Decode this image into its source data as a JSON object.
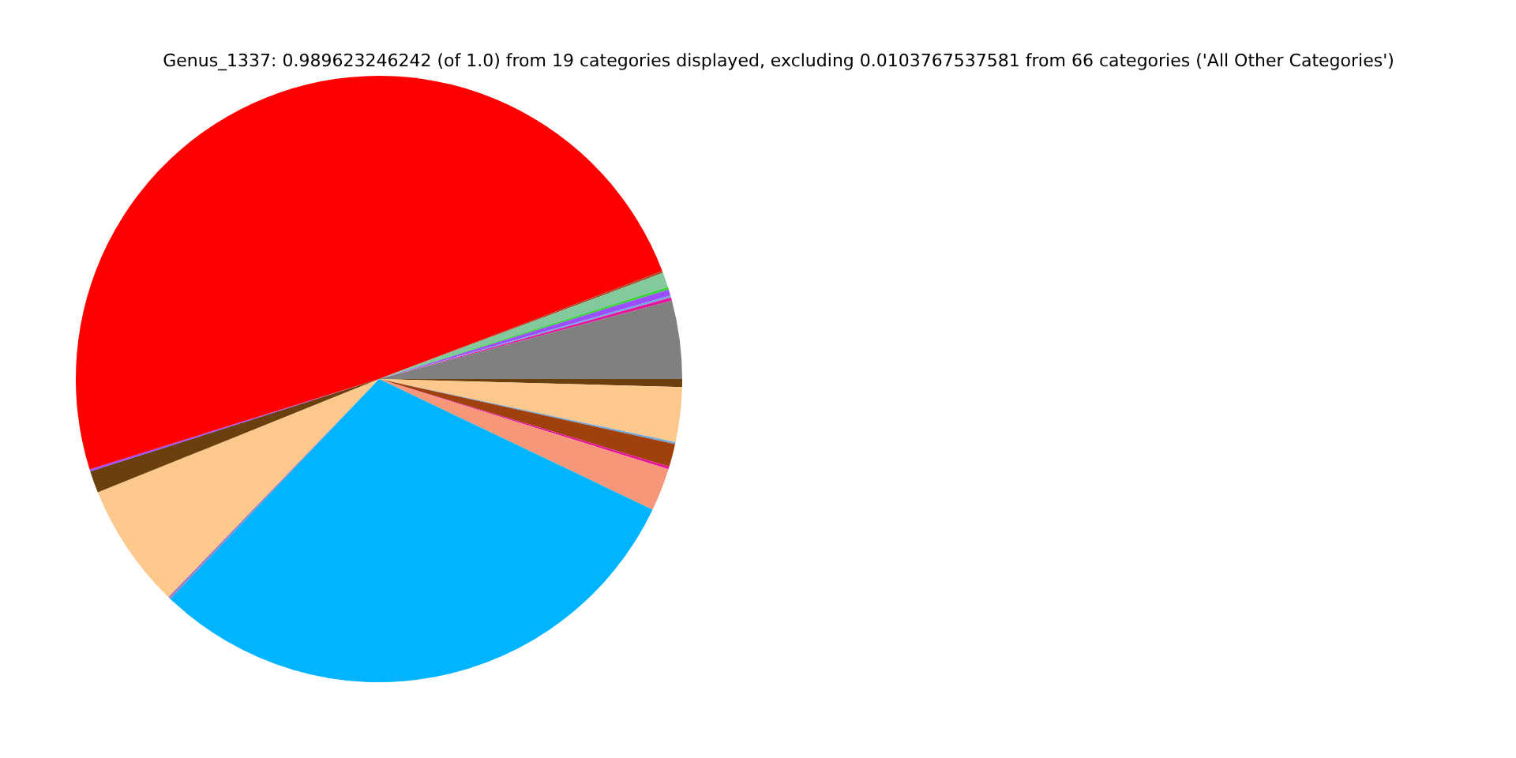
{
  "chart_data": {
    "type": "pie",
    "title": "Genus_1337: 0.989623246242 (of 1.0) from 19 categories displayed, excluding 0.0103767537581 from 66 categories ('All Other Categories')",
    "categories": [
      null,
      null,
      null,
      null,
      null,
      null,
      null,
      null,
      null,
      null,
      null,
      null,
      null,
      null,
      null,
      null,
      null,
      null,
      null
    ],
    "values": [
      0.42,
      2.92,
      0.11,
      1.22,
      0.14,
      2.28,
      30.0,
      0.14,
      6.67,
      1.17,
      0.11,
      49.02,
      0.11,
      0.78,
      0.14,
      0.33,
      0.11,
      0.17,
      4.16
    ],
    "colors": [
      "#6b400f",
      "#fdc88c",
      "#6ea8dc",
      "#a0410d",
      "#e6139c",
      "#f7977a",
      "#00b4ff",
      "#a080c0",
      "#fdc88c",
      "#6b400f",
      "#9b4dff",
      "#ff0000",
      "#a0522d",
      "#82ca9d",
      "#39d339",
      "#9b4dff",
      "#6ea8dc",
      "#e6139c",
      "#808080"
    ],
    "legend": false
  }
}
